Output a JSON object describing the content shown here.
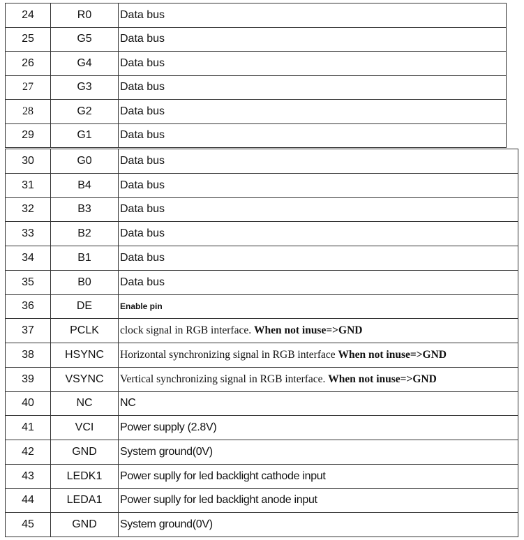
{
  "table_top": [
    {
      "pin": "24",
      "name": "R0",
      "desc": "Data bus"
    },
    {
      "pin": "25",
      "name": "G5",
      "desc": "Data bus"
    },
    {
      "pin": "26",
      "name": "G4",
      "desc": "Data bus"
    },
    {
      "pin": "27",
      "name": "G3",
      "desc": "Data bus"
    },
    {
      "pin": "28",
      "name": "G2",
      "desc": "Data bus"
    },
    {
      "pin": "29",
      "name": "G1",
      "desc": "Data bus"
    }
  ],
  "table_bottom": [
    {
      "pin": "30",
      "name": "G0",
      "desc": "Data bus"
    },
    {
      "pin": "31",
      "name": "B4",
      "desc": "Data bus"
    },
    {
      "pin": "32",
      "name": "B3",
      "desc": "Data bus"
    },
    {
      "pin": "33",
      "name": "B2",
      "desc": "Data bus"
    },
    {
      "pin": "34",
      "name": "B1",
      "desc": "Data bus"
    },
    {
      "pin": "35",
      "name": "B0",
      "desc": "Data bus"
    },
    {
      "pin": "36",
      "name": "DE",
      "desc": "Enable pin"
    },
    {
      "pin": "37",
      "name": "PCLK",
      "desc": "clock signal in RGB interface. ",
      "desc_bold": "When not inuse=>GND"
    },
    {
      "pin": "38",
      "name": "HSYNC",
      "desc": "Horizontal synchronizing signal in RGB interface ",
      "desc_bold": "When not inuse=>GND"
    },
    {
      "pin": "39",
      "name": "VSYNC",
      "desc": "Vertical synchronizing signal in RGB interface. ",
      "desc_bold": "When not inuse=>GND"
    },
    {
      "pin": "40",
      "name": "NC",
      "desc": "NC"
    },
    {
      "pin": "41",
      "name": "VCI",
      "desc": "Power supply (2.8V)"
    },
    {
      "pin": "42",
      "name": "GND",
      "desc": "System ground(0V)"
    },
    {
      "pin": "43",
      "name": "LEDK1",
      "desc": "Power suplly for led backlight cathode input"
    },
    {
      "pin": "44",
      "name": "LEDA1",
      "desc": "Power suplly for led backlight anode input"
    },
    {
      "pin": "45",
      "name": "GND",
      "desc": "System ground(0V)"
    }
  ]
}
